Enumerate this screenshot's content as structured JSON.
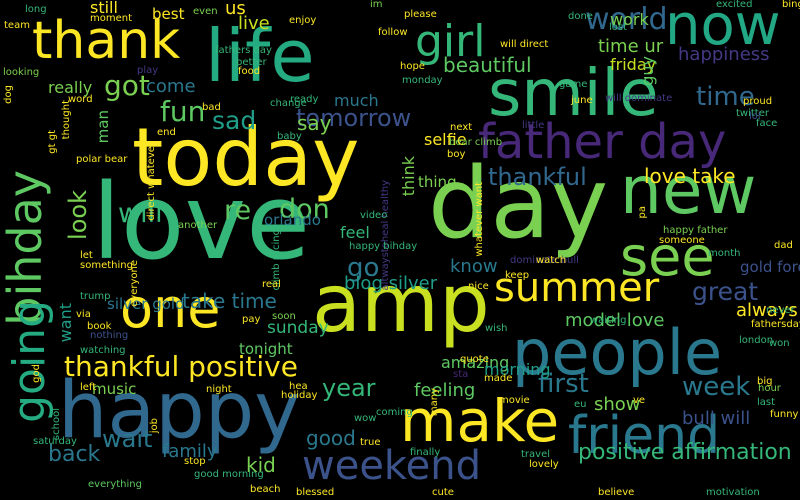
{
  "words": [
    {
      "text": "love",
      "color": "#35b779"
    },
    {
      "text": "amp",
      "color": "#c8e020"
    },
    {
      "text": "today",
      "color": "#fde725"
    },
    {
      "text": "day",
      "color": "#7ad151"
    },
    {
      "text": "happy",
      "color": "#31688e"
    },
    {
      "text": "life",
      "color": "#25ab82"
    },
    {
      "text": "people",
      "color": "#2a788e"
    },
    {
      "text": "smile",
      "color": "#35b779"
    },
    {
      "text": "new",
      "color": "#5ec962"
    },
    {
      "text": "now",
      "color": "#22a884"
    },
    {
      "text": "one",
      "color": "#fde725"
    },
    {
      "text": "thank",
      "color": "#fde725"
    },
    {
      "text": "friend",
      "color": "#2a788e"
    },
    {
      "text": "make",
      "color": "#fde725"
    },
    {
      "text": "see",
      "color": "#7ad151"
    },
    {
      "text": "father day",
      "color": "#482878"
    },
    {
      "text": "bihday",
      "color": "#5ec962"
    },
    {
      "text": "going",
      "color": "#25ab82"
    },
    {
      "text": "summer",
      "color": "#fde725"
    },
    {
      "text": "weekend",
      "color": "#3b528b"
    },
    {
      "text": "girl",
      "color": "#35b779"
    },
    {
      "text": "thankful positive",
      "color": "#fde725"
    },
    {
      "text": "fun",
      "color": "#5ec962"
    },
    {
      "text": "got",
      "color": "#7ad151"
    },
    {
      "text": "sad",
      "color": "#1f9e89"
    },
    {
      "text": "go",
      "color": "#2a788e"
    },
    {
      "text": "world",
      "color": "#31688e"
    },
    {
      "text": "will",
      "color": "#35b779"
    },
    {
      "text": "re",
      "color": "#5ec962"
    },
    {
      "text": "don",
      "color": "#5ec962"
    },
    {
      "text": "look",
      "color": "#7ad151"
    },
    {
      "text": "tomorrow",
      "color": "#3b528b"
    },
    {
      "text": "thankful",
      "color": "#31688e"
    },
    {
      "text": "time",
      "color": "#31688e"
    },
    {
      "text": "great",
      "color": "#3b528b"
    },
    {
      "text": "first",
      "color": "#2a788e"
    },
    {
      "text": "week",
      "color": "#2a788e"
    },
    {
      "text": "year",
      "color": "#35b779"
    },
    {
      "text": "positive affirmation",
      "color": "#35b779"
    },
    {
      "text": "beautiful",
      "color": "#5ec962"
    },
    {
      "text": "take time",
      "color": "#2a788e"
    },
    {
      "text": "love take",
      "color": "#fde725"
    },
    {
      "text": "wait",
      "color": "#2a788e"
    },
    {
      "text": "back",
      "color": "#2a788e"
    },
    {
      "text": "good",
      "color": "#2a788e"
    },
    {
      "text": "feeling",
      "color": "#5ec962"
    },
    {
      "text": "family",
      "color": "#2a788e"
    },
    {
      "text": "blog silver",
      "color": "#1f9e89"
    },
    {
      "text": "know",
      "color": "#2a788e"
    },
    {
      "text": "always",
      "color": "#fde725"
    },
    {
      "text": "happiness",
      "color": "#443983"
    },
    {
      "text": "kid",
      "color": "#7ad151"
    },
    {
      "text": "want",
      "color": "#1f9e89"
    },
    {
      "text": "model love",
      "color": "#5ec962"
    },
    {
      "text": "bull will",
      "color": "#3b528b"
    },
    {
      "text": "time ur",
      "color": "#7ad151"
    },
    {
      "text": "come",
      "color": "#2a788e"
    },
    {
      "text": "really",
      "color": "#7ad151"
    },
    {
      "text": "work",
      "color": "#7ad151"
    },
    {
      "text": "friday",
      "color": "#c8e020"
    },
    {
      "text": "much",
      "color": "#2a788e"
    },
    {
      "text": "silver gold",
      "color": "#2a788e"
    },
    {
      "text": "sunday",
      "color": "#35b779"
    },
    {
      "text": "say",
      "color": "#7ad151"
    },
    {
      "text": "live",
      "color": "#c8e020"
    },
    {
      "text": "us",
      "color": "#fde725"
    },
    {
      "text": "think",
      "color": "#7ad151"
    },
    {
      "text": "feel",
      "color": "#35b779"
    },
    {
      "text": "amazing",
      "color": "#5ec962"
    },
    {
      "text": "show",
      "color": "#7ad151"
    },
    {
      "text": "man",
      "color": "#5ec962"
    },
    {
      "text": "tonight",
      "color": "#5ec962"
    },
    {
      "text": "morning",
      "color": "#1f9e89"
    },
    {
      "text": "music",
      "color": "#7ad151"
    },
    {
      "text": "orlando",
      "color": "#2a788e"
    },
    {
      "text": "selfie",
      "color": "#fde725"
    },
    {
      "text": "guy",
      "color": "#5ec962"
    },
    {
      "text": "gold forex",
      "color": "#3b528b"
    },
    {
      "text": "still",
      "color": "#fde725"
    },
    {
      "text": "best",
      "color": "#fde725"
    },
    {
      "text": "thing",
      "color": "#7ad151"
    },
    {
      "text": "sta",
      "color": "#482878"
    },
    {
      "text": "everything",
      "color": "#5ec962"
    },
    {
      "text": "fathersday",
      "color": "#fde725"
    },
    {
      "text": "nothing",
      "color": "#3b528b"
    },
    {
      "text": "hour",
      "color": "#7ad151"
    },
    {
      "text": "true",
      "color": "#fde725"
    },
    {
      "text": "hope",
      "color": "#fde725"
    },
    {
      "text": "please",
      "color": "#fde725"
    },
    {
      "text": "even",
      "color": "#7ad151"
    },
    {
      "text": "food",
      "color": "#fde725"
    },
    {
      "text": "trump",
      "color": "#35b779"
    },
    {
      "text": "left",
      "color": "#fde725"
    },
    {
      "text": "quote",
      "color": "#fde725"
    },
    {
      "text": "finally",
      "color": "#35b779"
    },
    {
      "text": "cute",
      "color": "#fde725"
    },
    {
      "text": "believe",
      "color": "#fde725"
    },
    {
      "text": "motivation",
      "color": "#35b779"
    },
    {
      "text": "will dominate",
      "color": "#443983"
    },
    {
      "text": "dominate bull",
      "color": "#443983"
    },
    {
      "text": "watch",
      "color": "#fde725"
    },
    {
      "text": "keep",
      "color": "#fde725"
    },
    {
      "text": "nice",
      "color": "#fde725"
    },
    {
      "text": "wish",
      "color": "#35b779"
    },
    {
      "text": "happy father",
      "color": "#7ad151"
    },
    {
      "text": "someone",
      "color": "#fde725"
    },
    {
      "text": "month",
      "color": "#35b779"
    },
    {
      "text": "dad",
      "color": "#fde725"
    },
    {
      "text": "twitter",
      "color": "#35b779"
    },
    {
      "text": "face",
      "color": "#35b779"
    },
    {
      "text": "lol",
      "color": "#3b528b"
    },
    {
      "text": "june",
      "color": "#fde725"
    },
    {
      "text": "little",
      "color": "#443983"
    },
    {
      "text": "proud",
      "color": "#fde725"
    },
    {
      "text": "game",
      "color": "#35b779"
    },
    {
      "text": "excited",
      "color": "#35b779"
    },
    {
      "text": "bing bong",
      "color": "#fde725"
    },
    {
      "text": "done",
      "color": "#35b779"
    },
    {
      "text": "lost",
      "color": "#35b779"
    },
    {
      "text": "long",
      "color": "#35b779"
    },
    {
      "text": "moment",
      "color": "#fde725"
    },
    {
      "text": "team",
      "color": "#fde725"
    },
    {
      "text": "looking",
      "color": "#7ad151"
    },
    {
      "text": "word",
      "color": "#fde725"
    },
    {
      "text": "play",
      "color": "#443983"
    },
    {
      "text": "better",
      "color": "#35b779"
    },
    {
      "text": "fathers day",
      "color": "#35b779"
    },
    {
      "text": "enjoy",
      "color": "#fde725"
    },
    {
      "text": "im",
      "color": "#7ad151"
    },
    {
      "text": "follow",
      "color": "#fde725"
    },
    {
      "text": "will direct",
      "color": "#fde725"
    },
    {
      "text": "monday",
      "color": "#35b779"
    },
    {
      "text": "bad",
      "color": "#fde725"
    },
    {
      "text": "change",
      "color": "#35b779"
    },
    {
      "text": "ready",
      "color": "#35b779"
    },
    {
      "text": "baby",
      "color": "#35b779"
    },
    {
      "text": "end",
      "color": "#fde725"
    },
    {
      "text": "direct whatever",
      "color": "#fde725"
    },
    {
      "text": "polar bear",
      "color": "#fde725"
    },
    {
      "text": "bear climb",
      "color": "#7ad151"
    },
    {
      "text": "boy",
      "color": "#fde725"
    },
    {
      "text": "next",
      "color": "#fde725"
    },
    {
      "text": "gt gt",
      "color": "#fde725"
    },
    {
      "text": "dog",
      "color": "#fde725"
    },
    {
      "text": "another",
      "color": "#7ad151"
    },
    {
      "text": "climb racing",
      "color": "#35b779"
    },
    {
      "text": "altwaystoheal healthy",
      "color": "#443983"
    },
    {
      "text": "whatever want",
      "color": "#fde725"
    },
    {
      "text": "pa",
      "color": "#fde725"
    },
    {
      "text": "video",
      "color": "#35b779"
    },
    {
      "text": "happy bihday",
      "color": "#35b779"
    },
    {
      "text": "let",
      "color": "#fde725"
    },
    {
      "text": "something",
      "color": "#fde725"
    },
    {
      "text": "everyone",
      "color": "#fde725"
    },
    {
      "text": "pay",
      "color": "#fde725"
    },
    {
      "text": "real",
      "color": "#fde725"
    },
    {
      "text": "soon",
      "color": "#7ad151"
    },
    {
      "text": "via",
      "color": "#fde725"
    },
    {
      "text": "book",
      "color": "#fde725"
    },
    {
      "text": "watching",
      "color": "#35b779"
    },
    {
      "text": "waiting",
      "color": "#35b779"
    },
    {
      "text": "never",
      "color": "#35b779"
    },
    {
      "text": "london",
      "color": "#35b779"
    },
    {
      "text": "won",
      "color": "#35b779"
    },
    {
      "text": "big",
      "color": "#fde725"
    },
    {
      "text": "last",
      "color": "#35b779"
    },
    {
      "text": "funny",
      "color": "#fde725"
    },
    {
      "text": "made",
      "color": "#fde725"
    },
    {
      "text": "eu",
      "color": "#35b779"
    },
    {
      "text": "ve",
      "color": "#fde725"
    },
    {
      "text": "many",
      "color": "#fde725"
    },
    {
      "text": "movie",
      "color": "#fde725"
    },
    {
      "text": "travel",
      "color": "#35b779"
    },
    {
      "text": "lovely",
      "color": "#fde725"
    },
    {
      "text": "coming",
      "color": "#35b779"
    },
    {
      "text": "wow",
      "color": "#35b779"
    },
    {
      "text": "hea",
      "color": "#fde725"
    },
    {
      "text": "holiday",
      "color": "#fde725"
    },
    {
      "text": "night",
      "color": "#fde725"
    },
    {
      "text": "god",
      "color": "#fde725"
    },
    {
      "text": "school",
      "color": "#35b779"
    },
    {
      "text": "saturday",
      "color": "#35b779"
    },
    {
      "text": "job",
      "color": "#fde725"
    },
    {
      "text": "stop",
      "color": "#fde725"
    },
    {
      "text": "good morning",
      "color": "#35b779"
    },
    {
      "text": "beach",
      "color": "#fde725"
    },
    {
      "text": "blessed",
      "color": "#fde725"
    },
    {
      "text": "thought",
      "color": "#fde725"
    },
    {
      "text": "america",
      "color": "#443983"
    },
    {
      "text": "bihday",
      "color": "#fde725"
    }
  ]
}
